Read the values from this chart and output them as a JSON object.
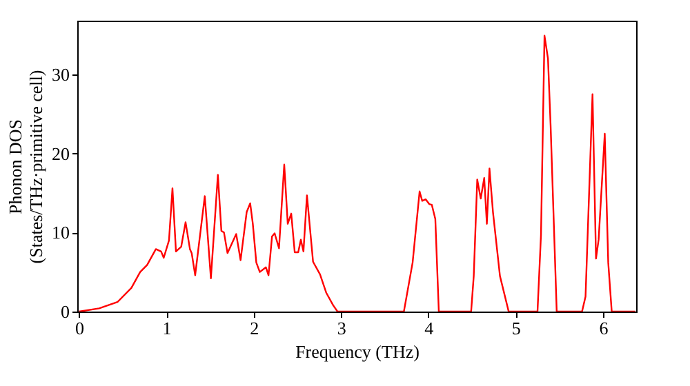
{
  "chart_data": {
    "type": "line",
    "xlabel": "Frequency (THz)",
    "ylabel": "Phonon DOS\n(States/THz·primitive cell)",
    "xlim": [
      -0.02,
      6.38
    ],
    "ylim": [
      0,
      36.8
    ],
    "xticks": [
      0,
      1,
      2,
      3,
      4,
      5,
      6
    ],
    "yticks": [
      0,
      10,
      20,
      30
    ],
    "grid": false,
    "legend": false,
    "marker": "none",
    "line_style": "solid",
    "x": [
      0,
      0.23,
      0.44,
      0.6,
      0.7,
      0.78,
      0.88,
      0.94,
      0.97,
      1.03,
      1.07,
      1.11,
      1.17,
      1.22,
      1.27,
      1.29,
      1.33,
      1.44,
      1.51,
      1.59,
      1.63,
      1.66,
      1.7,
      1.8,
      1.85,
      1.92,
      1.96,
      1.99,
      2.03,
      2.07,
      2.14,
      2.17,
      2.21,
      2.24,
      2.29,
      2.35,
      2.39,
      2.43,
      2.47,
      2.51,
      2.54,
      2.57,
      2.61,
      2.68,
      2.76,
      2.83,
      2.91,
      2.96,
      3.72,
      3.82,
      3.9,
      3.93,
      3.97,
      4.01,
      4.04,
      4.08,
      4.12,
      4.49,
      4.52,
      4.56,
      4.6,
      4.64,
      4.67,
      4.7,
      4.74,
      4.82,
      4.92,
      5.25,
      5.29,
      5.33,
      5.37,
      5.4,
      5.47,
      5.76,
      5.8,
      5.88,
      5.92,
      5.95,
      6.02,
      6.06,
      6.1,
      6.37
    ],
    "series": [
      {
        "color": "#ff0000",
        "values": [
          0,
          0.4,
          1.2,
          3.0,
          5.0,
          5.9,
          7.9,
          7.6,
          6.8,
          9.0,
          15.6,
          7.6,
          8.2,
          11.3,
          7.9,
          7.4,
          4.6,
          14.6,
          4.2,
          17.3,
          10.2,
          10.0,
          7.4,
          9.8,
          6.5,
          12.6,
          13.7,
          11.1,
          6.2,
          5.0,
          5.6,
          4.6,
          9.5,
          9.9,
          8.0,
          18.6,
          11.1,
          12.4,
          7.5,
          7.5,
          9.1,
          7.6,
          14.7,
          6.3,
          4.7,
          2.4,
          0.8,
          0,
          0,
          6.2,
          15.2,
          14.0,
          14.2,
          13.6,
          13.5,
          11.7,
          0,
          0,
          4.5,
          16.7,
          14.3,
          16.9,
          11.1,
          18.1,
          12.6,
          4.5,
          0,
          0,
          9.7,
          34.9,
          32.0,
          23.6,
          0,
          0,
          1.9,
          27.5,
          6.7,
          9.1,
          22.5,
          6.2,
          0,
          0
        ]
      }
    ]
  }
}
